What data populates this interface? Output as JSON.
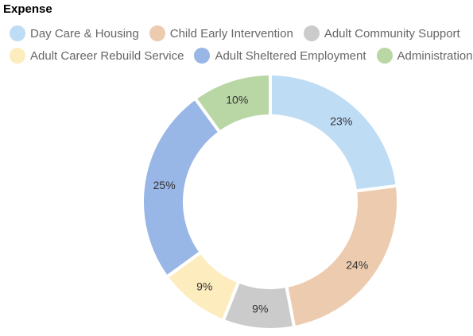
{
  "chart_data": {
    "type": "pie",
    "title": "Expense",
    "legend_position": "top",
    "categories": [
      "Day Care & Housing",
      "Child Early Intervention",
      "Adult Community Support",
      "Adult Career Rebuild Service",
      "Adult Sheltered Employment",
      "Administration"
    ],
    "values": [
      23,
      24,
      9,
      9,
      25,
      10
    ],
    "labels": [
      "23%",
      "24%",
      "9%",
      "9%",
      "25%",
      "10%"
    ],
    "colors": [
      "#bfdcf5",
      "#edcbae",
      "#cbcbcb",
      "#fdecbe",
      "#98b6e6",
      "#b9d6a5"
    ]
  }
}
